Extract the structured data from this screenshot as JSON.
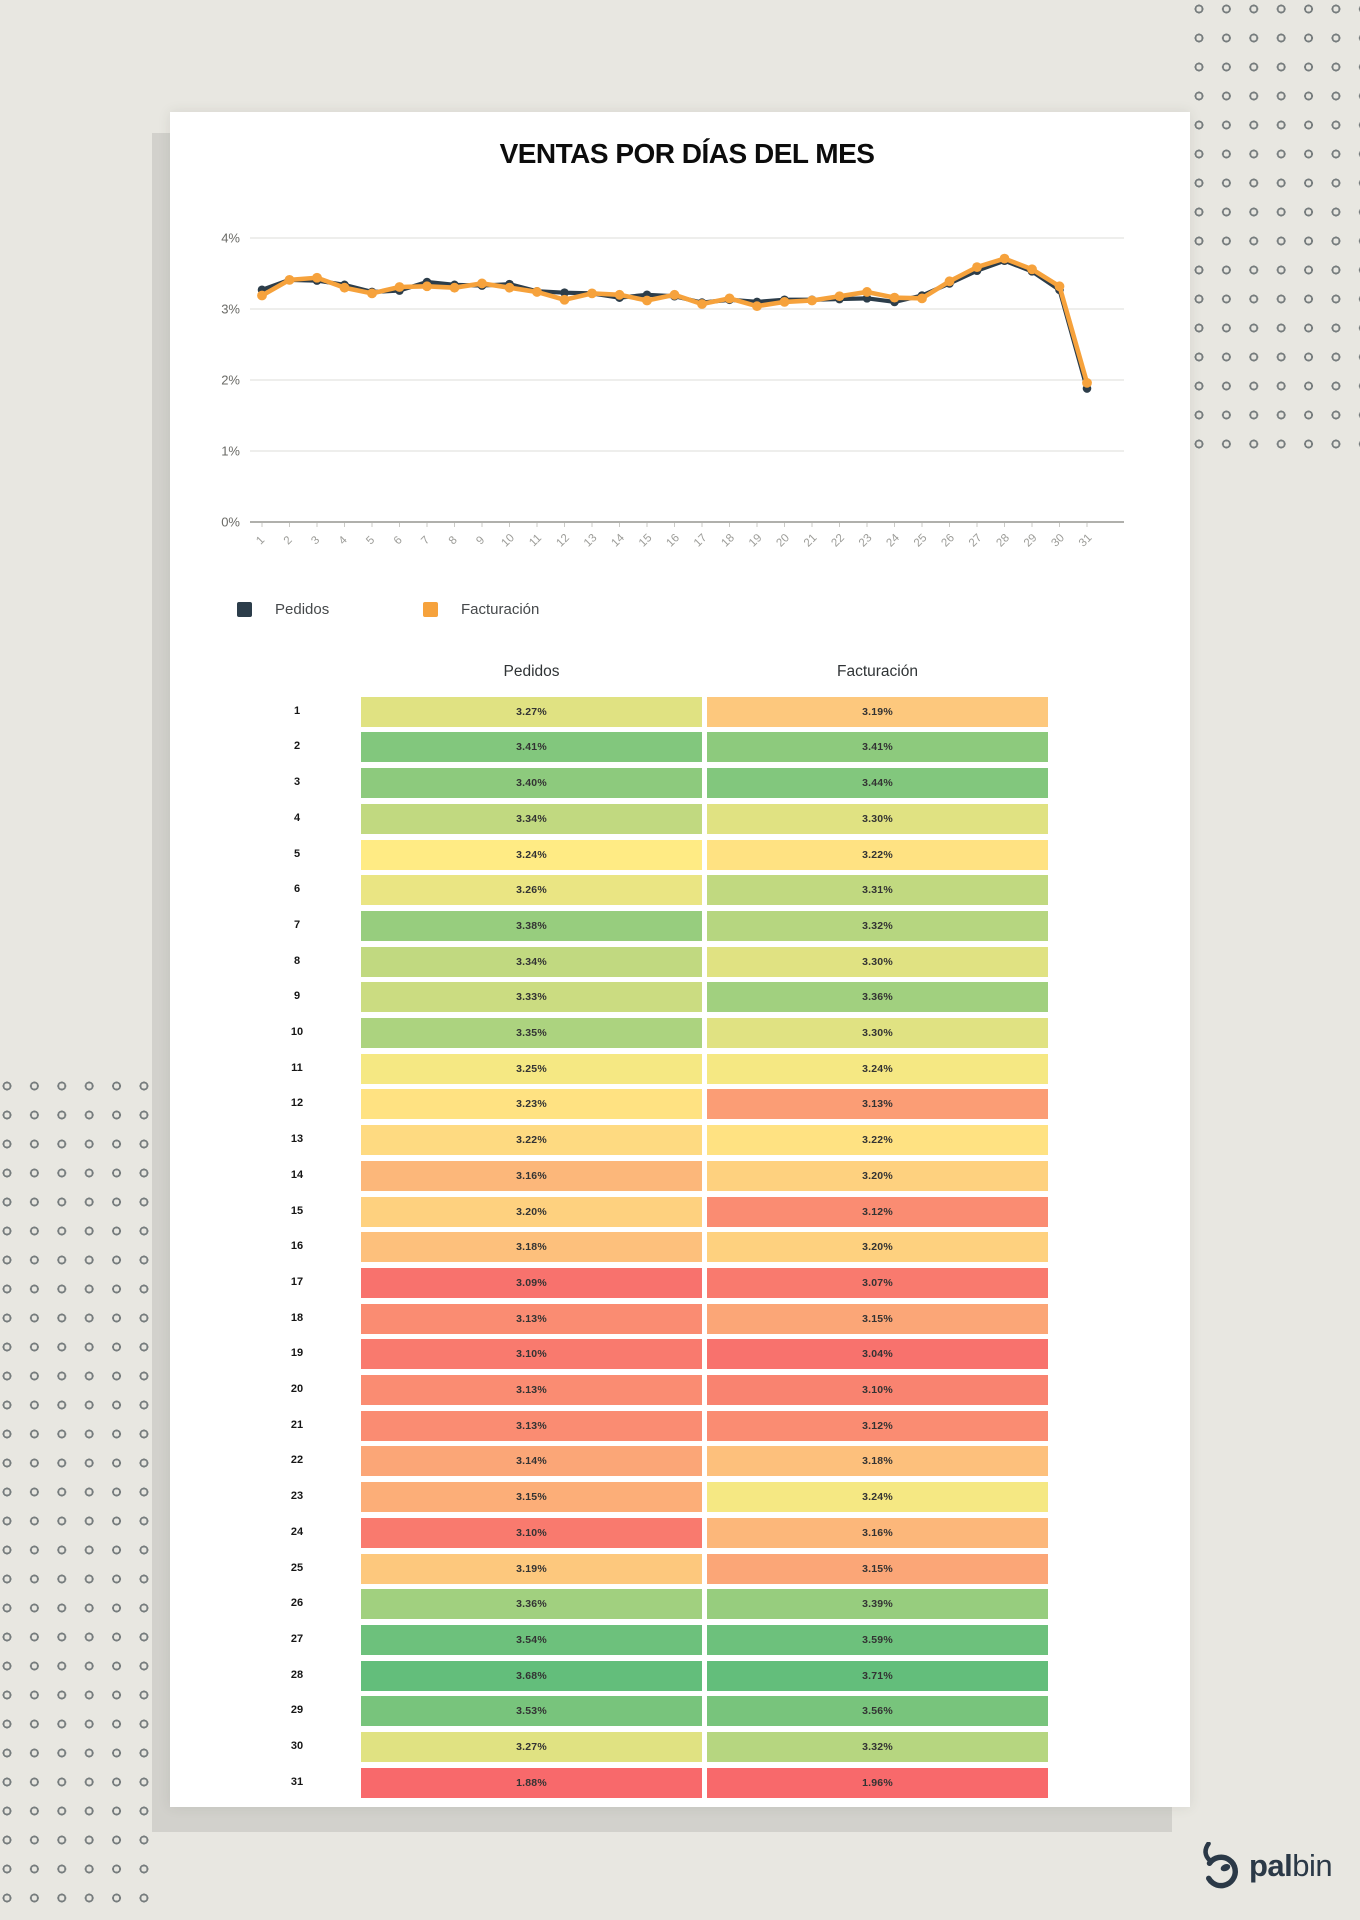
{
  "title": "VENTAS POR DÍAS DEL MES",
  "legend": {
    "pedidos": "Pedidos",
    "facturacion": "Facturación"
  },
  "chart_data": {
    "type": "line",
    "title": "VENTAS POR DÍAS DEL MES",
    "x": [
      1,
      2,
      3,
      4,
      5,
      6,
      7,
      8,
      9,
      10,
      11,
      12,
      13,
      14,
      15,
      16,
      17,
      18,
      19,
      20,
      21,
      22,
      23,
      24,
      25,
      26,
      27,
      28,
      29,
      30,
      31
    ],
    "series": [
      {
        "name": "Pedidos",
        "color": "#2C3D4A",
        "values": [
          3.27,
          3.41,
          3.4,
          3.34,
          3.24,
          3.26,
          3.38,
          3.34,
          3.33,
          3.35,
          3.25,
          3.23,
          3.22,
          3.16,
          3.2,
          3.18,
          3.09,
          3.13,
          3.1,
          3.13,
          3.13,
          3.14,
          3.15,
          3.1,
          3.19,
          3.36,
          3.54,
          3.68,
          3.53,
          3.27,
          1.88
        ]
      },
      {
        "name": "Facturación",
        "color": "#F6A23C",
        "values": [
          3.19,
          3.41,
          3.44,
          3.3,
          3.22,
          3.31,
          3.32,
          3.3,
          3.36,
          3.3,
          3.24,
          3.13,
          3.22,
          3.2,
          3.12,
          3.2,
          3.07,
          3.15,
          3.04,
          3.1,
          3.12,
          3.18,
          3.24,
          3.16,
          3.15,
          3.39,
          3.59,
          3.71,
          3.56,
          3.32,
          1.96
        ]
      }
    ],
    "ylim": [
      0,
      4
    ],
    "y_ticks": [
      "0%",
      "1%",
      "2%",
      "3%",
      "4%"
    ],
    "grid": true,
    "legend_position": "bottom",
    "value_suffix": "%"
  },
  "table": {
    "headers": [
      "Pedidos",
      "Facturación"
    ],
    "heat_stops": [
      "#F8696B",
      "#FFEB84",
      "#63BE7B"
    ]
  },
  "logo": {
    "bold": "pal",
    "light": "bin"
  },
  "colors": {
    "background": "#E8E7E1",
    "page": "#FFFFFF",
    "page_behind": "#D2D1CC",
    "dot_ring": "#767C7D",
    "gridline": "#DCDCD8",
    "axis_line": "#A5A5A1",
    "tick_label": "#9C9C98",
    "y_label": "#6A6A66",
    "logo_color": "#2B3947"
  }
}
